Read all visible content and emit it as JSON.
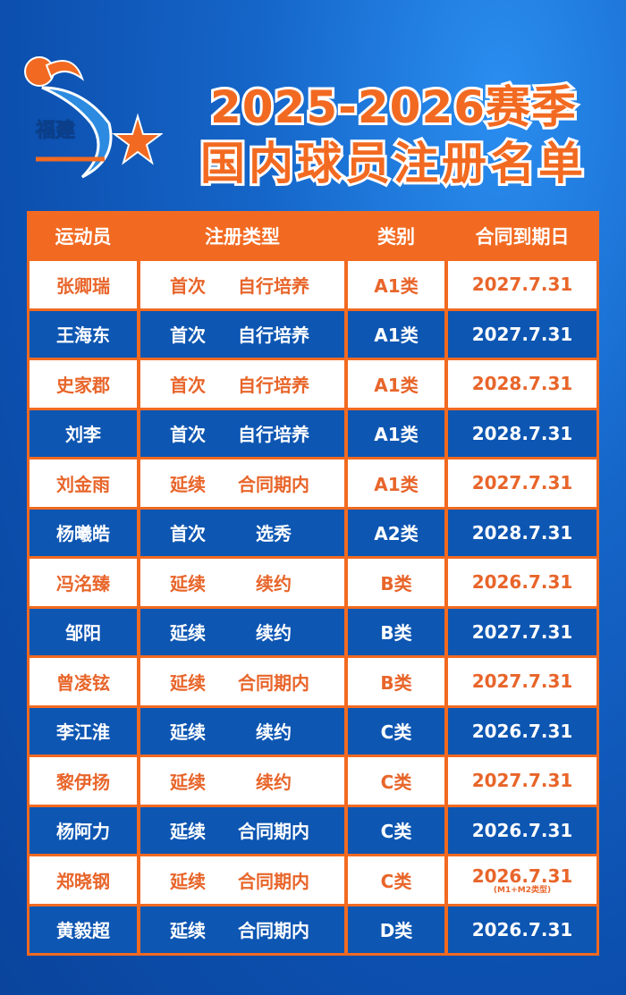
{
  "logo": {
    "text": "福建"
  },
  "title": {
    "line1": "2025-2026赛季",
    "line2": "国内球员注册名单"
  },
  "colors": {
    "orange": "#f26a21",
    "blue": "#0d56b2",
    "white": "#ffffff"
  },
  "table": {
    "headers": [
      "运动员",
      "注册类型",
      "类别",
      "合同到期日"
    ],
    "rows": [
      {
        "name": "张卿瑞",
        "reg": "首次",
        "reg_detail": "自行培养",
        "category": "A1类",
        "expiry": "2027.7.31"
      },
      {
        "name": "王海东",
        "reg": "首次",
        "reg_detail": "自行培养",
        "category": "A1类",
        "expiry": "2027.7.31"
      },
      {
        "name": "史家郡",
        "reg": "首次",
        "reg_detail": "自行培养",
        "category": "A1类",
        "expiry": "2028.7.31"
      },
      {
        "name": "刘李",
        "reg": "首次",
        "reg_detail": "自行培养",
        "category": "A1类",
        "expiry": "2028.7.31"
      },
      {
        "name": "刘金雨",
        "reg": "延续",
        "reg_detail": "合同期内",
        "category": "A1类",
        "expiry": "2027.7.31"
      },
      {
        "name": "杨曦皓",
        "reg": "首次",
        "reg_detail": "选秀",
        "category": "A2类",
        "expiry": "2028.7.31"
      },
      {
        "name": "冯洺臻",
        "reg": "延续",
        "reg_detail": "续约",
        "category": "B类",
        "expiry": "2026.7.31"
      },
      {
        "name": "邹阳",
        "reg": "延续",
        "reg_detail": "续约",
        "category": "B类",
        "expiry": "2027.7.31"
      },
      {
        "name": "曾凌铉",
        "reg": "延续",
        "reg_detail": "合同期内",
        "category": "B类",
        "expiry": "2027.7.31"
      },
      {
        "name": "李江淮",
        "reg": "延续",
        "reg_detail": "续约",
        "category": "C类",
        "expiry": "2026.7.31"
      },
      {
        "name": "黎伊扬",
        "reg": "延续",
        "reg_detail": "续约",
        "category": "C类",
        "expiry": "2027.7.31"
      },
      {
        "name": "杨阿力",
        "reg": "延续",
        "reg_detail": "合同期内",
        "category": "C类",
        "expiry": "2026.7.31"
      },
      {
        "name": "郑晓钢",
        "reg": "延续",
        "reg_detail": "合同期内",
        "category": "C类",
        "expiry": "2026.7.31",
        "note": "(M1+M2类型)"
      },
      {
        "name": "黄毅超",
        "reg": "延续",
        "reg_detail": "合同期内",
        "category": "D类",
        "expiry": "2026.7.31"
      }
    ]
  }
}
